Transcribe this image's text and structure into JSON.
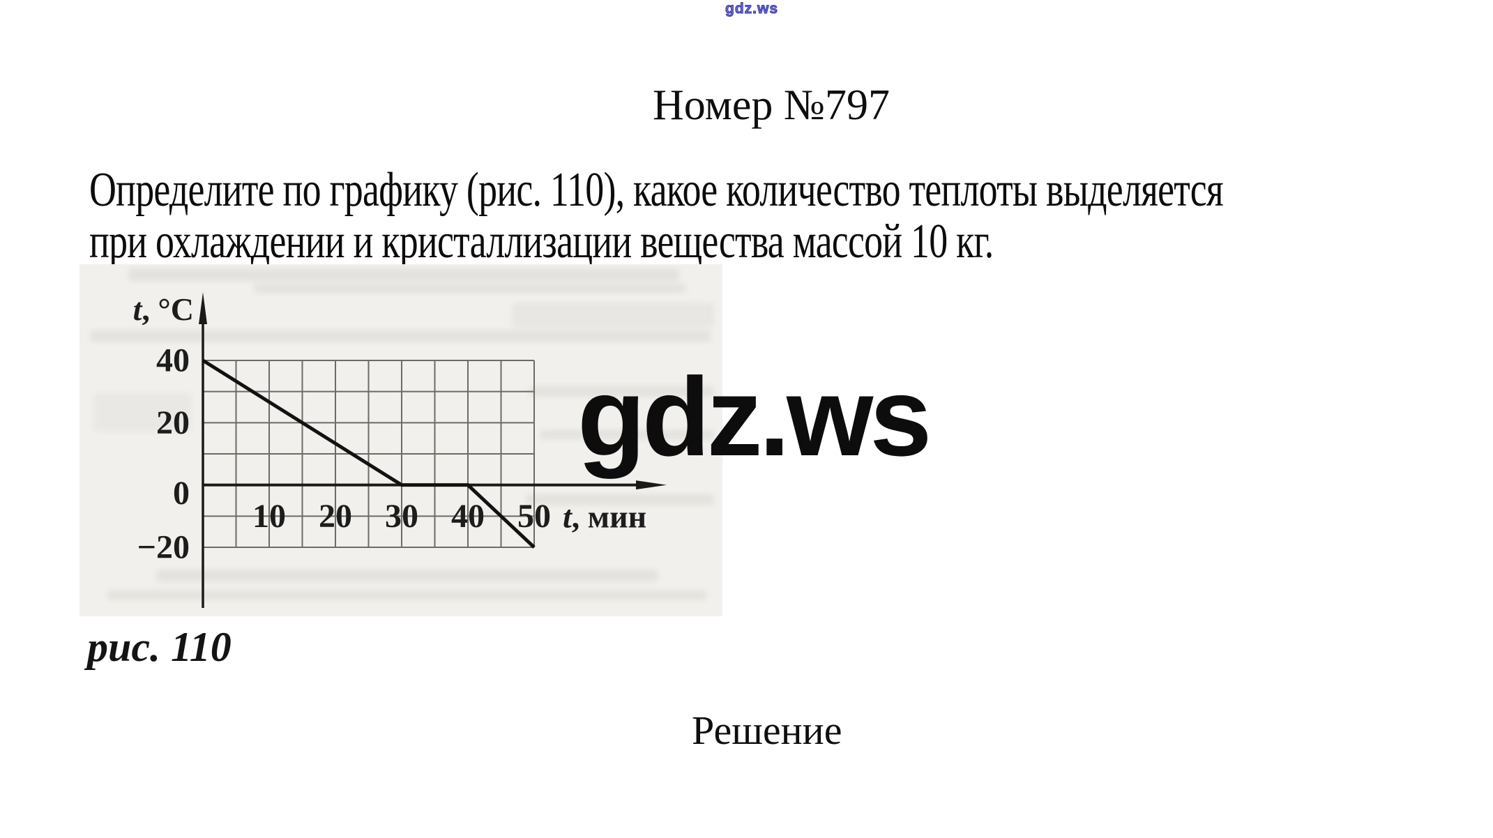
{
  "page": {
    "watermark_top": "gdz.ws",
    "title": "Номер №797",
    "problem_line1": "Определите по графику (рис. 110), какое количество теплоты выделяется",
    "problem_line2": "при охлаждении и кристаллизации вещества массой 10 кг.",
    "figure_caption": "рис. 110",
    "watermark_big": "gdz.ws",
    "solution_heading": "Решение"
  },
  "colors": {
    "page_background": "#ffffff",
    "figure_background": "#f1f0ed",
    "grid_line": "#6e6a64",
    "axis_and_curve": "#161616",
    "top_watermark_blue": "#3a3aa8",
    "text": "#0e0e0e"
  },
  "chart_data": {
    "type": "line",
    "title": "рис. 110",
    "xlabel": "t, мин",
    "ylabel": "t, °C",
    "xlim": [
      0,
      50
    ],
    "ylim": [
      -20,
      40
    ],
    "x_grid_step": 5,
    "y_grid_step": 10,
    "x_ticks": [
      10,
      20,
      30,
      40,
      50
    ],
    "y_ticks": [
      40,
      20,
      0,
      -20
    ],
    "grid": true,
    "legend": false,
    "series": [
      {
        "name": "cooling-and-crystallization-curve",
        "points": [
          [
            0,
            40
          ],
          [
            30,
            0
          ],
          [
            40,
            0
          ],
          [
            50,
            -20
          ]
        ]
      }
    ]
  }
}
